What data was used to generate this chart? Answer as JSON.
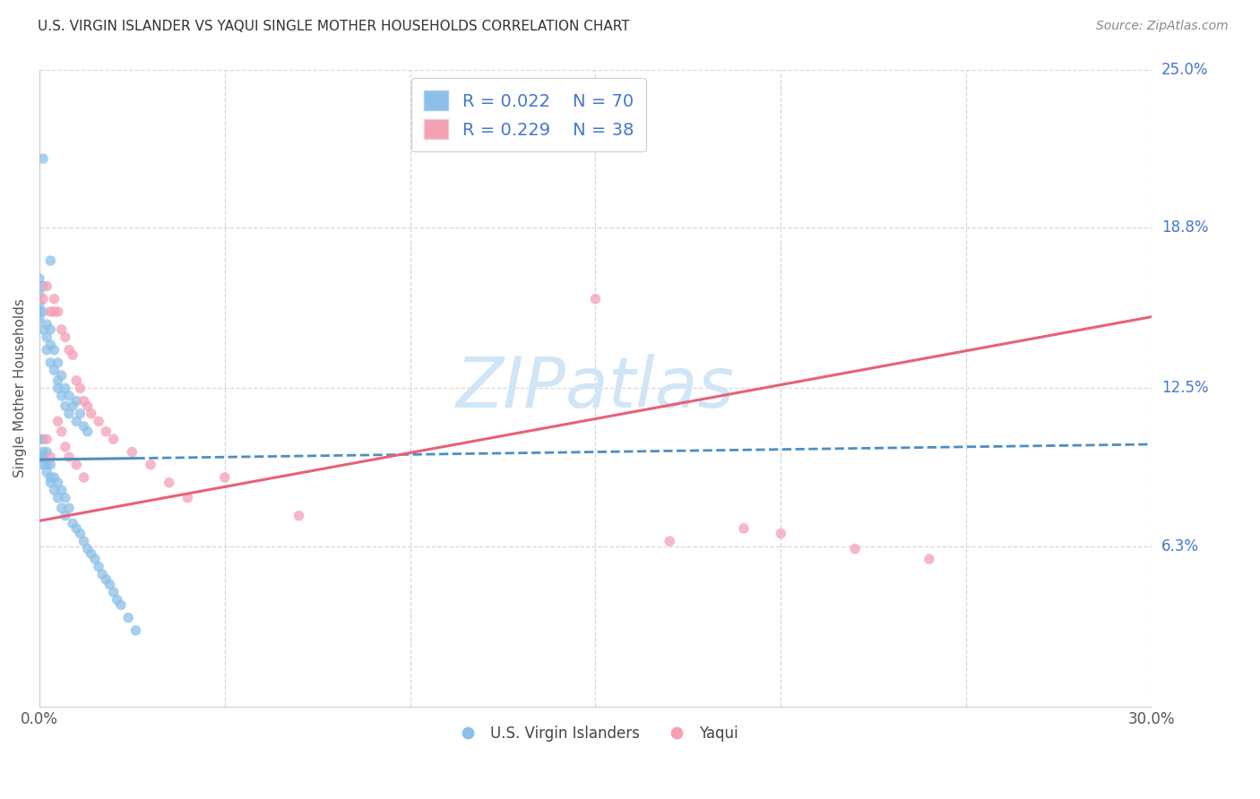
{
  "title": "U.S. VIRGIN ISLANDER VS YAQUI SINGLE MOTHER HOUSEHOLDS CORRELATION CHART",
  "source": "Source: ZipAtlas.com",
  "ylabel": "Single Mother Households",
  "xlim": [
    0.0,
    0.3
  ],
  "ylim": [
    0.0,
    0.25
  ],
  "xtick_vals": [
    0.0,
    0.05,
    0.1,
    0.15,
    0.2,
    0.25,
    0.3
  ],
  "xtick_labels": [
    "0.0%",
    "",
    "",
    "",
    "",
    "",
    "30.0%"
  ],
  "ytick_labels_right": [
    "25.0%",
    "18.8%",
    "12.5%",
    "6.3%"
  ],
  "ytick_vals_right": [
    0.25,
    0.188,
    0.125,
    0.063
  ],
  "blue_color": "#8bbfe8",
  "pink_color": "#f4a0b5",
  "blue_line_color": "#4c8ec4",
  "pink_line_color": "#e8607a",
  "axis_label_color": "#4477cc",
  "watermark_color": "#d0e5f5",
  "legend1_r": "0.022",
  "legend1_n": "70",
  "legend2_r": "0.229",
  "legend2_n": "38",
  "legend_label1": "U.S. Virgin Islanders",
  "legend_label2": "Yaqui",
  "blue_trendline_y0": 0.097,
  "blue_trendline_y1": 0.103,
  "pink_trendline_y0": 0.073,
  "pink_trendline_y1": 0.153,
  "background_color": "#ffffff",
  "grid_color": "#d8d8d8",
  "blue_x": [
    0.001,
    0.003,
    0.001,
    0.0,
    0.0,
    0.0,
    0.0,
    0.0,
    0.001,
    0.001,
    0.002,
    0.002,
    0.002,
    0.003,
    0.003,
    0.003,
    0.004,
    0.004,
    0.005,
    0.005,
    0.005,
    0.006,
    0.006,
    0.007,
    0.007,
    0.008,
    0.008,
    0.009,
    0.01,
    0.01,
    0.011,
    0.012,
    0.013,
    0.0,
    0.0,
    0.001,
    0.001,
    0.001,
    0.001,
    0.002,
    0.002,
    0.002,
    0.003,
    0.003,
    0.003,
    0.004,
    0.004,
    0.005,
    0.005,
    0.006,
    0.006,
    0.007,
    0.007,
    0.008,
    0.009,
    0.01,
    0.011,
    0.012,
    0.013,
    0.014,
    0.015,
    0.016,
    0.017,
    0.018,
    0.019,
    0.02,
    0.021,
    0.022,
    0.024,
    0.026
  ],
  "blue_y": [
    0.215,
    0.175,
    0.165,
    0.168,
    0.162,
    0.158,
    0.155,
    0.152,
    0.155,
    0.148,
    0.15,
    0.145,
    0.14,
    0.148,
    0.142,
    0.135,
    0.14,
    0.132,
    0.135,
    0.128,
    0.125,
    0.13,
    0.122,
    0.125,
    0.118,
    0.122,
    0.115,
    0.118,
    0.12,
    0.112,
    0.115,
    0.11,
    0.108,
    0.105,
    0.098,
    0.105,
    0.1,
    0.098,
    0.095,
    0.1,
    0.095,
    0.092,
    0.095,
    0.09,
    0.088,
    0.09,
    0.085,
    0.088,
    0.082,
    0.085,
    0.078,
    0.082,
    0.075,
    0.078,
    0.072,
    0.07,
    0.068,
    0.065,
    0.062,
    0.06,
    0.058,
    0.055,
    0.052,
    0.05,
    0.048,
    0.045,
    0.042,
    0.04,
    0.035,
    0.03
  ],
  "pink_x": [
    0.001,
    0.002,
    0.003,
    0.004,
    0.004,
    0.005,
    0.006,
    0.007,
    0.008,
    0.009,
    0.01,
    0.011,
    0.012,
    0.013,
    0.014,
    0.016,
    0.018,
    0.02,
    0.025,
    0.03,
    0.035,
    0.04,
    0.002,
    0.003,
    0.005,
    0.006,
    0.007,
    0.008,
    0.01,
    0.012,
    0.05,
    0.07,
    0.15,
    0.17,
    0.19,
    0.2,
    0.22,
    0.24
  ],
  "pink_y": [
    0.16,
    0.165,
    0.155,
    0.16,
    0.155,
    0.155,
    0.148,
    0.145,
    0.14,
    0.138,
    0.128,
    0.125,
    0.12,
    0.118,
    0.115,
    0.112,
    0.108,
    0.105,
    0.1,
    0.095,
    0.088,
    0.082,
    0.105,
    0.098,
    0.112,
    0.108,
    0.102,
    0.098,
    0.095,
    0.09,
    0.09,
    0.075,
    0.16,
    0.065,
    0.07,
    0.068,
    0.062,
    0.058
  ]
}
